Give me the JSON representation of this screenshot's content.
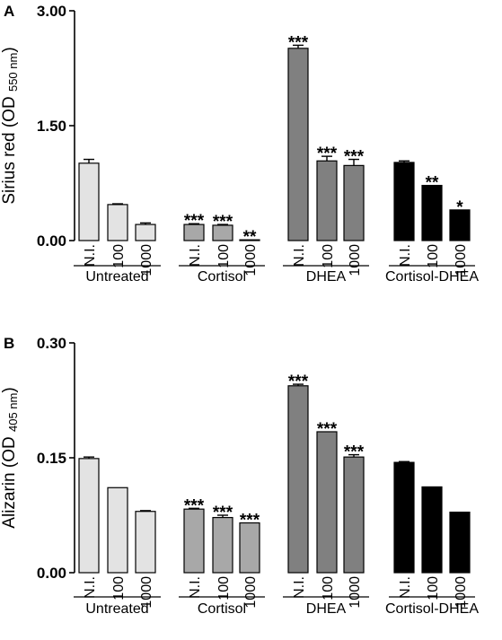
{
  "chart_data": [
    {
      "type": "bar",
      "panel": "A",
      "ylabel_main": "Sirius red (OD ",
      "ylabel_sub": "550 nm",
      "ylabel_close": ")",
      "ylim": [
        0,
        3.0
      ],
      "yticks": [
        "0.00",
        "1.50",
        "3.00"
      ],
      "ytick_values": [
        0,
        1.5,
        3.0
      ],
      "groups": [
        {
          "name": "Untreated",
          "color": "#e3e3e3",
          "categories": [
            "N.I.",
            "100",
            "1000"
          ],
          "values": [
            1.01,
            0.47,
            0.21
          ],
          "errors": [
            0.05,
            0.01,
            0.02
          ],
          "stars": [
            "",
            "",
            ""
          ]
        },
        {
          "name": "Cortisol",
          "color": "#a8a8a8",
          "categories": [
            "N.I.",
            "100",
            "1000"
          ],
          "values": [
            0.21,
            0.2,
            0.01
          ],
          "errors": [
            0.01,
            0.01,
            0.0
          ],
          "stars": [
            "***",
            "***",
            "**"
          ]
        },
        {
          "name": "DHEA",
          "color": "#808080",
          "categories": [
            "N.I.",
            "100",
            "1000"
          ],
          "values": [
            2.51,
            1.04,
            0.98
          ],
          "errors": [
            0.04,
            0.06,
            0.08
          ],
          "stars": [
            "***",
            "***",
            "***"
          ]
        },
        {
          "name": "Cortisol-DHEA",
          "color": "#000000",
          "categories": [
            "N.I.",
            "100",
            "1000"
          ],
          "values": [
            1.02,
            0.72,
            0.4
          ],
          "errors": [
            0.02,
            0.0,
            0.0
          ],
          "stars": [
            "",
            "**",
            "*"
          ]
        }
      ]
    },
    {
      "type": "bar",
      "panel": "B",
      "ylabel_main": "Alizarin (OD ",
      "ylabel_sub": "405 nm",
      "ylabel_close": ")",
      "ylim": [
        0,
        0.3
      ],
      "yticks": [
        "0.00",
        "0.15",
        "0.30"
      ],
      "ytick_values": [
        0,
        0.15,
        0.3
      ],
      "groups": [
        {
          "name": "Untreated",
          "color": "#e3e3e3",
          "categories": [
            "N.I.",
            "100",
            "1000"
          ],
          "values": [
            0.149,
            0.111,
            0.08
          ],
          "errors": [
            0.002,
            0.0,
            0.001
          ],
          "stars": [
            "",
            "",
            ""
          ]
        },
        {
          "name": "Cortisol",
          "color": "#a8a8a8",
          "categories": [
            "N.I.",
            "100",
            "1000"
          ],
          "values": [
            0.083,
            0.072,
            0.065
          ],
          "errors": [
            0.001,
            0.003,
            0.0
          ],
          "stars": [
            "***",
            "***",
            "***"
          ]
        },
        {
          "name": "DHEA",
          "color": "#808080",
          "categories": [
            "N.I.",
            "100",
            "1000"
          ],
          "values": [
            0.244,
            0.184,
            0.151
          ],
          "errors": [
            0.002,
            0.0,
            0.003
          ],
          "stars": [
            "***",
            "***",
            "***"
          ]
        },
        {
          "name": "Cortisol-DHEA",
          "color": "#000000",
          "categories": [
            "N.I.",
            "100",
            "1000"
          ],
          "values": [
            0.144,
            0.112,
            0.079
          ],
          "errors": [
            0.001,
            0.0,
            0.0
          ],
          "stars": [
            "",
            "",
            ""
          ]
        }
      ]
    }
  ]
}
